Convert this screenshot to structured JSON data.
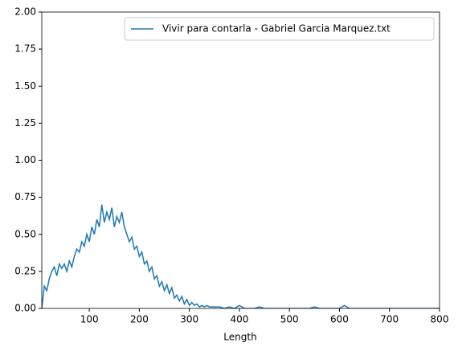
{
  "chart_data": {
    "type": "line",
    "xlabel": "Length",
    "x": [
      5,
      10,
      15,
      20,
      25,
      30,
      35,
      40,
      45,
      50,
      55,
      60,
      65,
      70,
      75,
      80,
      85,
      90,
      95,
      100,
      105,
      110,
      115,
      120,
      125,
      130,
      135,
      140,
      145,
      150,
      155,
      160,
      165,
      170,
      175,
      180,
      185,
      190,
      195,
      200,
      205,
      210,
      215,
      220,
      225,
      230,
      235,
      240,
      245,
      250,
      255,
      260,
      265,
      270,
      275,
      280,
      285,
      290,
      295,
      300,
      305,
      310,
      315,
      320,
      325,
      330,
      335,
      340,
      345,
      350,
      360,
      370,
      380,
      390,
      400,
      410,
      420,
      430,
      440,
      450,
      460,
      470,
      480,
      490,
      500,
      510,
      520,
      530,
      540,
      550,
      560,
      570,
      580,
      590,
      600,
      610,
      620,
      630,
      640,
      650,
      660,
      670,
      680,
      690,
      700,
      710,
      720,
      730,
      740,
      750,
      760,
      770,
      780,
      790,
      800
    ],
    "series": [
      {
        "name": "Vivir para contarla - Gabriel Garcia Marquez.txt",
        "color": "#1f77b4",
        "values": [
          0.0,
          0.15,
          0.12,
          0.2,
          0.25,
          0.28,
          0.22,
          0.3,
          0.27,
          0.3,
          0.25,
          0.32,
          0.28,
          0.35,
          0.4,
          0.38,
          0.45,
          0.42,
          0.5,
          0.45,
          0.55,
          0.5,
          0.6,
          0.55,
          0.7,
          0.58,
          0.65,
          0.6,
          0.68,
          0.55,
          0.62,
          0.58,
          0.65,
          0.55,
          0.5,
          0.45,
          0.48,
          0.4,
          0.42,
          0.35,
          0.38,
          0.3,
          0.32,
          0.25,
          0.28,
          0.2,
          0.22,
          0.15,
          0.18,
          0.12,
          0.16,
          0.1,
          0.14,
          0.07,
          0.09,
          0.05,
          0.08,
          0.03,
          0.06,
          0.02,
          0.04,
          0.02,
          0.03,
          0.01,
          0.02,
          0.01,
          0.02,
          0.01,
          0.01,
          0.01,
          0.01,
          0,
          0.01,
          0,
          0.02,
          0,
          0,
          0,
          0.01,
          0,
          0,
          0,
          0,
          0,
          0,
          0,
          0,
          0,
          0,
          0.01,
          0,
          0,
          0,
          0,
          0,
          0.02,
          0,
          0,
          0,
          0,
          0,
          0,
          0,
          0,
          0,
          0,
          0,
          0,
          0,
          0,
          0,
          0,
          0,
          0,
          0
        ]
      }
    ],
    "xlim": [
      5,
      800
    ],
    "xticks": [
      100,
      200,
      300,
      400,
      500,
      600,
      700,
      800
    ],
    "ylim": [
      0,
      2
    ],
    "yticks": [
      {
        "value": 0,
        "label": "0.00"
      },
      {
        "value": 0.25,
        "label": "0.25"
      },
      {
        "value": 0.5,
        "label": "0.50"
      },
      {
        "value": 0.75,
        "label": "0.75"
      },
      {
        "value": 1,
        "label": "1.00"
      },
      {
        "value": 1.25,
        "label": "1.25"
      },
      {
        "value": 1.5,
        "label": "1.50"
      },
      {
        "value": 1.75,
        "label": "1.75"
      },
      {
        "value": 2,
        "label": "2.00"
      }
    ],
    "legend": "upper right"
  }
}
